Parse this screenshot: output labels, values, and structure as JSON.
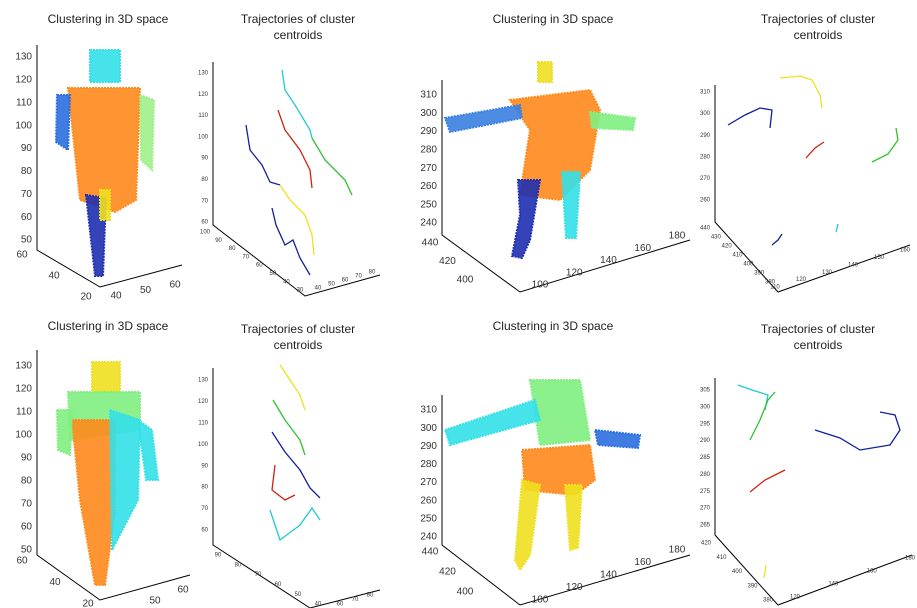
{
  "panels": [
    {
      "title": [
        "Clustering in 3D space"
      ],
      "z_ticks": [
        130,
        120,
        110,
        100,
        90,
        80,
        70,
        60,
        50
      ],
      "left_ticks": [
        60,
        40,
        20
      ],
      "right_ticks": [
        40,
        50,
        60
      ]
    },
    {
      "title": [
        "Trajectories of cluster",
        "centroids"
      ],
      "z_ticks": [
        130,
        120,
        110,
        100,
        90,
        80,
        70,
        60
      ],
      "left_ticks": [
        100,
        90,
        80,
        70,
        60,
        50,
        40,
        30
      ],
      "right_ticks": [
        40,
        50,
        60,
        70,
        80
      ]
    },
    {
      "title": [
        "Clustering in 3D space"
      ],
      "z_ticks": [
        310,
        300,
        290,
        280,
        270,
        260,
        250,
        240
      ],
      "left_ticks": [
        440,
        420,
        400
      ],
      "right_ticks": [
        100,
        120,
        140,
        160,
        180
      ]
    },
    {
      "title": [
        "Trajectories of cluster",
        "centroids"
      ],
      "z_ticks": [
        310,
        300,
        290,
        280,
        270,
        260
      ],
      "left_ticks": [
        440,
        430,
        420,
        410,
        400,
        390,
        380
      ],
      "right_ticks": [
        110,
        120,
        130,
        140,
        150,
        160
      ]
    },
    {
      "title": [
        "Clustering in 3D space"
      ],
      "z_ticks": [
        130,
        120,
        110,
        100,
        90,
        80,
        70,
        60,
        50
      ],
      "left_ticks": [
        60,
        40,
        20
      ],
      "right_ticks": [
        50,
        60
      ]
    },
    {
      "title": [
        "Trajectories of cluster",
        "centroids"
      ],
      "z_ticks": [
        130,
        120,
        110,
        100,
        90,
        80,
        70,
        60
      ],
      "left_ticks": [
        90,
        80,
        70,
        60,
        50,
        40
      ],
      "right_ticks": [
        60,
        70,
        80
      ]
    },
    {
      "title": [
        "Clustering in 3D space"
      ],
      "z_ticks": [
        310,
        300,
        290,
        280,
        270,
        260,
        250,
        240
      ],
      "left_ticks": [
        440,
        420,
        400
      ],
      "right_ticks": [
        100,
        120,
        140,
        160,
        180
      ]
    },
    {
      "title": [
        "Trajectories of cluster",
        "centroids"
      ],
      "z_ticks": [
        305,
        300,
        295,
        290,
        285,
        280,
        275,
        270,
        265
      ],
      "left_ticks": [
        420,
        410,
        400,
        390,
        380
      ],
      "right_ticks": [
        120,
        140,
        160,
        180
      ]
    }
  ]
}
